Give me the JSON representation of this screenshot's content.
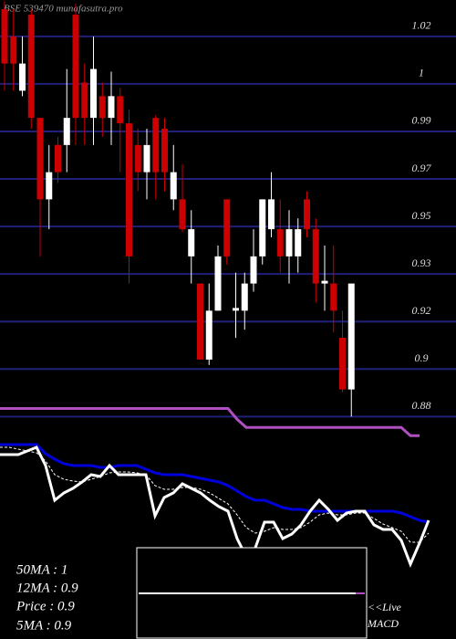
{
  "chart_data": [
    {
      "type": "candlestick",
      "title": "BSE 539470 munafasutra.pro",
      "ylim": [
        0.865,
        1.0334
      ],
      "yticks": [
        {
          "value": 1.02,
          "label": "1.02"
        },
        {
          "value": 1.0025,
          "label": "1"
        },
        {
          "value": 0.985,
          "label": "0.99"
        },
        {
          "value": 0.9675,
          "label": "0.97"
        },
        {
          "value": 0.95,
          "label": "0.95"
        },
        {
          "value": 0.9325,
          "label": "0.93"
        },
        {
          "value": 0.915,
          "label": "0.92"
        },
        {
          "value": 0.8975,
          "label": "0.9"
        },
        {
          "value": 0.88,
          "label": "0.88"
        }
      ],
      "grid": true,
      "grid_color": "#20207a",
      "up_color": "#ffffff",
      "down_color": "#cc0000",
      "open": [
        1.03,
        1.02,
        1.0,
        1.028,
        0.99,
        0.96,
        0.98,
        0.98,
        1.028,
        1.003,
        0.99,
        0.998,
        0.99,
        0.998,
        0.988,
        0.98,
        0.97,
        0.99,
        0.986,
        0.96,
        0.96,
        0.939,
        0.929,
        0.901,
        0.919,
        0.96,
        0.919,
        0.919,
        0.929,
        0.939,
        0.949,
        0.949,
        0.939,
        0.939,
        0.96,
        0.949,
        0.929,
        0.929,
        0.909,
        0.89
      ],
      "high": [
        1.033,
        1.03,
        1.02,
        1.03,
        0.99,
        0.98,
        0.983,
        1.008,
        1.032,
        1.01,
        1.02,
        1.003,
        1.007,
        1.001,
        0.993,
        0.986,
        0.986,
        0.991,
        0.99,
        0.98,
        0.973,
        0.956,
        0.929,
        0.929,
        0.943,
        0.96,
        0.933,
        0.933,
        0.949,
        0.96,
        0.97,
        0.96,
        0.956,
        0.953,
        0.963,
        0.953,
        0.943,
        0.943,
        0.919,
        0.929
      ],
      "low": [
        1.0,
        1.0,
        0.998,
        0.986,
        0.939,
        0.949,
        0.966,
        0.97,
        0.98,
        0.98,
        0.98,
        0.983,
        0.98,
        0.97,
        0.929,
        0.963,
        0.96,
        0.96,
        0.963,
        0.956,
        0.948,
        0.929,
        0.901,
        0.899,
        0.919,
        0.936,
        0.909,
        0.912,
        0.926,
        0.936,
        0.946,
        0.933,
        0.929,
        0.933,
        0.946,
        0.922,
        0.919,
        0.911,
        0.889,
        0.88
      ],
      "close": [
        1.01,
        1.01,
        1.01,
        0.99,
        0.96,
        0.97,
        0.97,
        0.99,
        0.99,
        0.99,
        1.008,
        0.99,
        0.998,
        0.988,
        0.939,
        0.97,
        0.98,
        0.97,
        0.97,
        0.97,
        0.949,
        0.949,
        0.901,
        0.919,
        0.939,
        0.939,
        0.92,
        0.929,
        0.939,
        0.96,
        0.96,
        0.939,
        0.949,
        0.949,
        0.949,
        0.929,
        0.93,
        0.919,
        0.89,
        0.929
      ],
      "overlay": {
        "color": "#b050c0",
        "values": [
          0.883,
          0.883,
          0.883,
          0.883,
          0.883,
          0.883,
          0.883,
          0.883,
          0.883,
          0.883,
          0.883,
          0.883,
          0.883,
          0.883,
          0.883,
          0.883,
          0.883,
          0.883,
          0.883,
          0.883,
          0.883,
          0.883,
          0.883,
          0.883,
          0.883,
          0.883,
          0.879,
          0.876,
          0.876,
          0.876,
          0.876,
          0.876,
          0.876,
          0.876,
          0.876,
          0.876,
          0.876,
          0.876,
          0.876,
          0.876,
          0.876,
          0.876,
          0.876,
          0.876,
          0.876,
          0.873,
          0.873
        ]
      }
    },
    {
      "type": "line",
      "ylim": [
        0,
        140
      ],
      "series": [
        {
          "color": "#0000dd",
          "values": [
            133,
            133,
            133,
            133,
            133,
            123,
            117,
            112,
            110,
            110,
            110,
            108,
            108,
            110,
            110,
            110,
            106,
            102,
            100,
            100,
            100,
            98,
            96,
            94,
            92,
            88,
            82,
            76,
            72,
            72,
            68,
            64,
            62,
            62,
            60,
            60,
            60,
            60,
            60,
            60,
            60,
            60,
            60,
            60,
            58,
            54,
            50,
            48
          ]
        },
        {
          "color": "#ffffff",
          "values": [
            122,
            122,
            122,
            126,
            130,
            110,
            72,
            80,
            85,
            92,
            100,
            98,
            110,
            100,
            100,
            100,
            100,
            55,
            75,
            80,
            90,
            85,
            80,
            72,
            65,
            60,
            30,
            10,
            20,
            48,
            48,
            30,
            35,
            45,
            60,
            72,
            62,
            50,
            58,
            60,
            60,
            45,
            40,
            40,
            28,
            2,
            25,
            50
          ]
        },
        {
          "color": "#ffffff",
          "dashed": true,
          "values": [
            130,
            130,
            128,
            126,
            124,
            115,
            100,
            95,
            93,
            92,
            95,
            98,
            102,
            103,
            103,
            102,
            100,
            88,
            84,
            84,
            86,
            86,
            84,
            80,
            74,
            68,
            56,
            42,
            36,
            38,
            42,
            40,
            40,
            42,
            48,
            56,
            58,
            56,
            56,
            58,
            58,
            52,
            46,
            42,
            38,
            26,
            26,
            36
          ]
        }
      ]
    }
  ],
  "stats": [
    "50MA : 1",
    "12MA : 0.9",
    "Price   : 0.9",
    "5MA : 0.9"
  ],
  "macd_label": [
    "<<Live",
    "MACD"
  ]
}
